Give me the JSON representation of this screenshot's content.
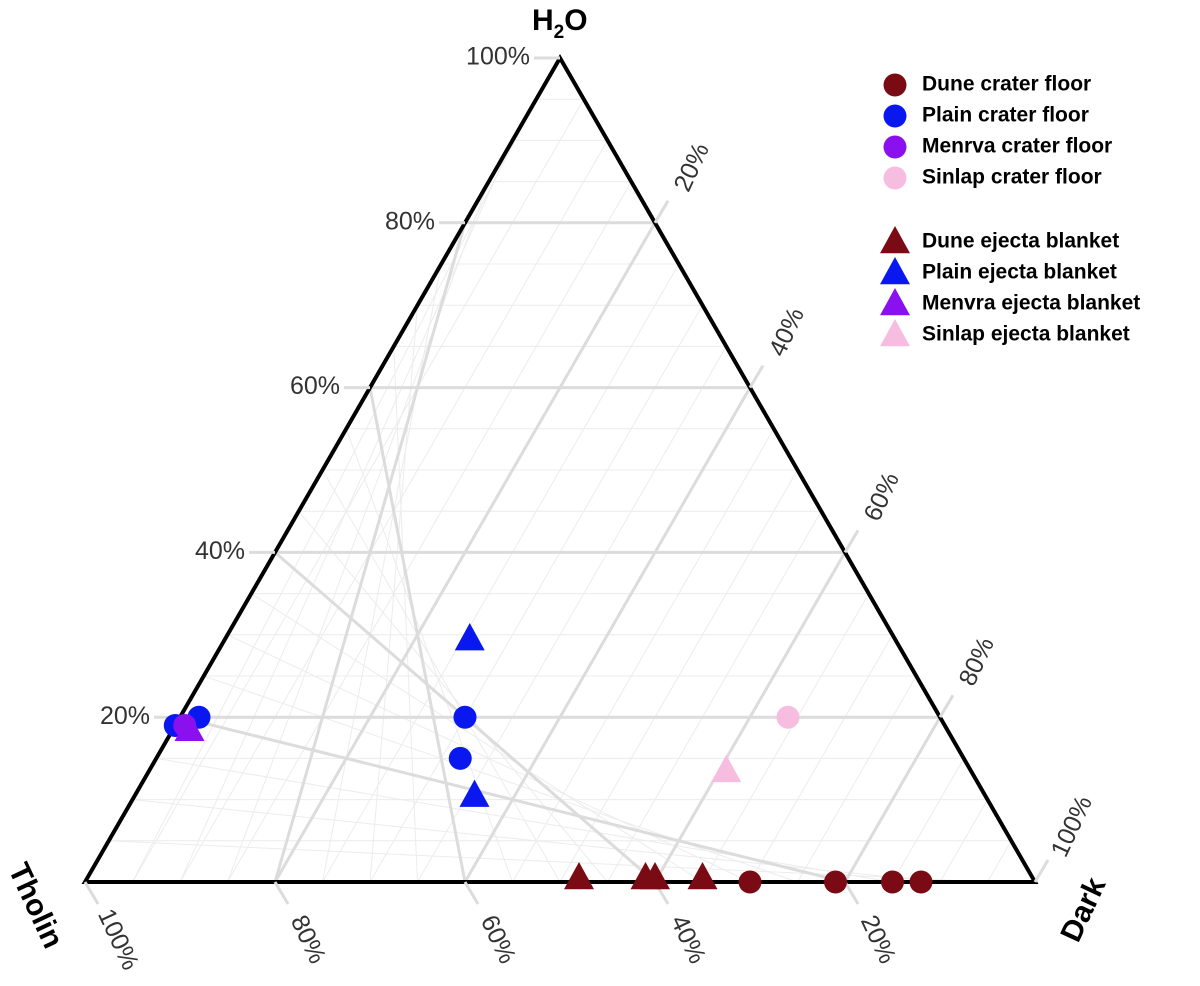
{
  "chart_data": {
    "type": "scatter",
    "subtype": "ternary",
    "axes": {
      "top": {
        "label_main": "H",
        "label_sub": "2",
        "label_end": "O",
        "ticks": [
          "20%",
          "40%",
          "60%",
          "80%",
          "100%"
        ]
      },
      "left": {
        "label": "Tholin",
        "ticks": [
          "100%",
          "80%",
          "60%",
          "40%",
          "20%"
        ]
      },
      "right": {
        "label": "Dark",
        "ticks": [
          "20%",
          "40%",
          "60%",
          "80%",
          "100%"
        ]
      }
    },
    "grid": true,
    "legend_position": "top-right",
    "series": [
      {
        "name": "Dune crater floor",
        "marker": "circle",
        "color": "#7a0a14",
        "points": [
          {
            "h2o": 0,
            "dark": 0.7,
            "tholin": 0.3
          },
          {
            "h2o": 0,
            "dark": 0.79,
            "tholin": 0.21
          },
          {
            "h2o": 0,
            "dark": 0.85,
            "tholin": 0.15
          },
          {
            "h2o": 0,
            "dark": 0.88,
            "tholin": 0.12
          }
        ]
      },
      {
        "name": "Plain crater floor",
        "marker": "circle",
        "color": "#0a18f0",
        "points": [
          {
            "h2o": 0.2,
            "dark": 0.02,
            "tholin": 0.78
          },
          {
            "h2o": 0.2,
            "dark": 0.3,
            "tholin": 0.5
          },
          {
            "h2o": 0.15,
            "dark": 0.32,
            "tholin": 0.53
          },
          {
            "h2o": 0.19,
            "dark": 0.0,
            "tholin": 0.81
          }
        ]
      },
      {
        "name": "Menrva crater floor",
        "marker": "circle",
        "color": "#8a10f0",
        "points": [
          {
            "h2o": 0.19,
            "dark": 0.01,
            "tholin": 0.8
          }
        ]
      },
      {
        "name": "Sinlap crater floor",
        "marker": "circle",
        "color": "#f7bde0",
        "points": [
          {
            "h2o": 0.2,
            "dark": 0.64,
            "tholin": 0.16
          }
        ]
      },
      {
        "name": "Dune ejecta blanket",
        "marker": "triangle",
        "color": "#7a0a14",
        "points": [
          {
            "h2o": 0,
            "dark": 0.52,
            "tholin": 0.48
          },
          {
            "h2o": 0,
            "dark": 0.59,
            "tholin": 0.41
          },
          {
            "h2o": 0,
            "dark": 0.6,
            "tholin": 0.4
          },
          {
            "h2o": 0,
            "dark": 0.65,
            "tholin": 0.35
          }
        ]
      },
      {
        "name": "Plain ejecta blanket",
        "marker": "triangle",
        "color": "#0a18f0",
        "points": [
          {
            "h2o": 0.29,
            "dark": 0.26,
            "tholin": 0.45
          },
          {
            "h2o": 0.1,
            "dark": 0.36,
            "tholin": 0.54
          }
        ]
      },
      {
        "name": "Menvra ejecta blanket",
        "marker": "triangle",
        "color": "#8a10f0",
        "points": [
          {
            "h2o": 0.18,
            "dark": 0.02,
            "tholin": 0.8
          }
        ]
      },
      {
        "name": "Sinlap ejecta blanket",
        "marker": "triangle",
        "color": "#f7bde0",
        "points": [
          {
            "h2o": 0.13,
            "dark": 0.61,
            "tholin": 0.26
          }
        ]
      }
    ]
  }
}
